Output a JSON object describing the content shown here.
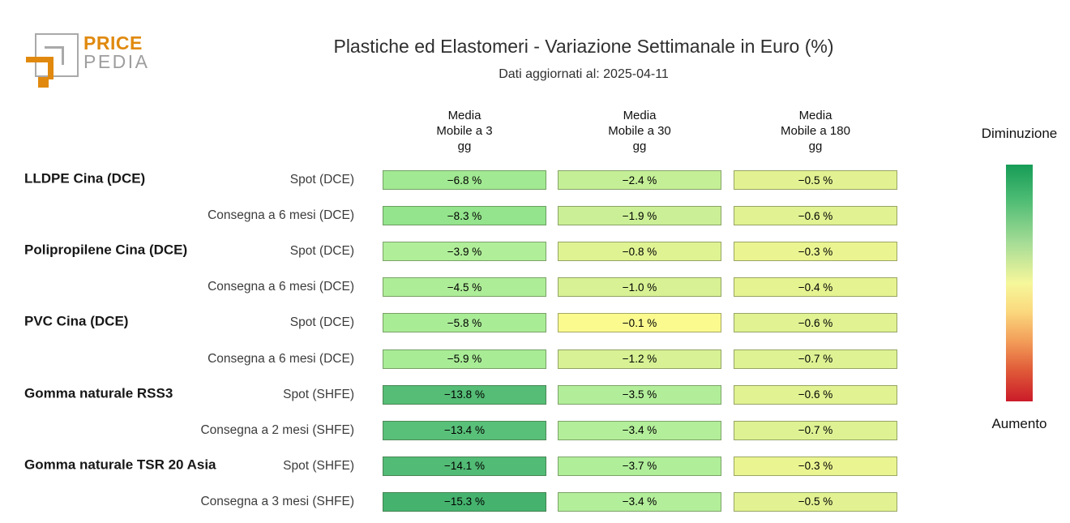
{
  "logo": {
    "brand_top": "PRICE",
    "brand_bottom": "PEDIA",
    "orange": "#e0890e",
    "gray": "#9e9e9e"
  },
  "header": {
    "title": "Plastiche ed Elastomeri - Variazione Settimanale in Euro (%)",
    "subtitle": "Dati aggiornati al: 2025-04-11"
  },
  "chart_data": {
    "type": "heatmap",
    "title": "Plastiche ed Elastomeri - Variazione Settimanale in Euro (%)",
    "updated_label": "Dati aggiornati al: 2025-04-11",
    "columns": [
      "Media\nMobile a 3\ngg",
      "Media\nMobile a 30\ngg",
      "Media\nMobile a 180\ngg"
    ],
    "value_unit": "%",
    "rows": [
      {
        "group": "LLDPE Cina (DCE)",
        "label": "Spot (DCE)",
        "values": [
          -6.8,
          -2.4,
          -0.5
        ],
        "display": [
          "−6.8 %",
          "−2.4 %",
          "−0.5 %"
        ],
        "colors": [
          "#a1e992",
          "#c4ef97",
          "#e2f292"
        ]
      },
      {
        "group": "",
        "label": "Consegna a 6 mesi (DCE)",
        "values": [
          -8.3,
          -1.9,
          -0.6
        ],
        "display": [
          "−8.3 %",
          "−1.9 %",
          "−0.6 %"
        ],
        "colors": [
          "#93e48c",
          "#cbef96",
          "#e0f292"
        ]
      },
      {
        "group": "Polipropilene Cina (DCE)",
        "label": "Spot (DCE)",
        "values": [
          -3.9,
          -0.8,
          -0.3
        ],
        "display": [
          "−3.9 %",
          "−0.8 %",
          "−0.3 %"
        ],
        "colors": [
          "#b0ee99",
          "#dff393",
          "#eaf591"
        ]
      },
      {
        "group": "",
        "label": "Consegna a 6 mesi (DCE)",
        "values": [
          -4.5,
          -1.0,
          -0.4
        ],
        "display": [
          "−4.5 %",
          "−1.0 %",
          "−0.4 %"
        ],
        "colors": [
          "#aeed98",
          "#d8f194",
          "#e6f391"
        ]
      },
      {
        "group": "PVC Cina (DCE)",
        "label": "Spot (DCE)",
        "values": [
          -5.8,
          -0.1,
          -0.6
        ],
        "display": [
          "−5.8 %",
          "−0.1 %",
          "−0.6 %"
        ],
        "colors": [
          "#a9ec96",
          "#fafa8f",
          "#e0f292"
        ]
      },
      {
        "group": "",
        "label": "Consegna a 6 mesi (DCE)",
        "values": [
          -5.9,
          -1.2,
          -0.7
        ],
        "display": [
          "−5.9 %",
          "−1.2 %",
          "−0.7 %"
        ],
        "colors": [
          "#a8ec96",
          "#d7f194",
          "#def293"
        ]
      },
      {
        "group": "Gomma naturale RSS3",
        "label": "Spot (SHFE)",
        "values": [
          -13.8,
          -3.5,
          -0.6
        ],
        "display": [
          "−13.8 %",
          "−3.5 %",
          "−0.6 %"
        ],
        "colors": [
          "#55bd76",
          "#b2ee9a",
          "#e0f292"
        ]
      },
      {
        "group": "",
        "label": "Consegna a 2 mesi (SHFE)",
        "values": [
          -13.4,
          -3.4,
          -0.7
        ],
        "display": [
          "−13.4 %",
          "−3.4 %",
          "−0.7 %"
        ],
        "colors": [
          "#59c079",
          "#b3ee9a",
          "#def293"
        ]
      },
      {
        "group": "Gomma naturale TSR 20 Asia",
        "label": "Spot (SHFE)",
        "values": [
          -14.1,
          -3.7,
          -0.3
        ],
        "display": [
          "−14.1 %",
          "−3.7 %",
          "−0.3 %"
        ],
        "colors": [
          "#52bb75",
          "#b0ee9a",
          "#eaf591"
        ]
      },
      {
        "group": "",
        "label": "Consegna a 3 mesi (SHFE)",
        "values": [
          -15.3,
          -3.4,
          -0.5
        ],
        "display": [
          "−15.3 %",
          "−3.4 %",
          "−0.5 %"
        ],
        "colors": [
          "#45b36e",
          "#b3ee9a",
          "#e2f292"
        ]
      }
    ],
    "colorbar": {
      "top_label": "Diminuzione",
      "bottom_label": "Aumento",
      "gradient_stops": [
        "#169c57 0%",
        "#4ebc74 15%",
        "#a5dc96 33%",
        "#f6f79b 50%",
        "#fbd97e 62%",
        "#f29b58 75%",
        "#e05a38 87%",
        "#cb1b29 100%"
      ]
    },
    "legend_position": "right",
    "grid": false
  }
}
